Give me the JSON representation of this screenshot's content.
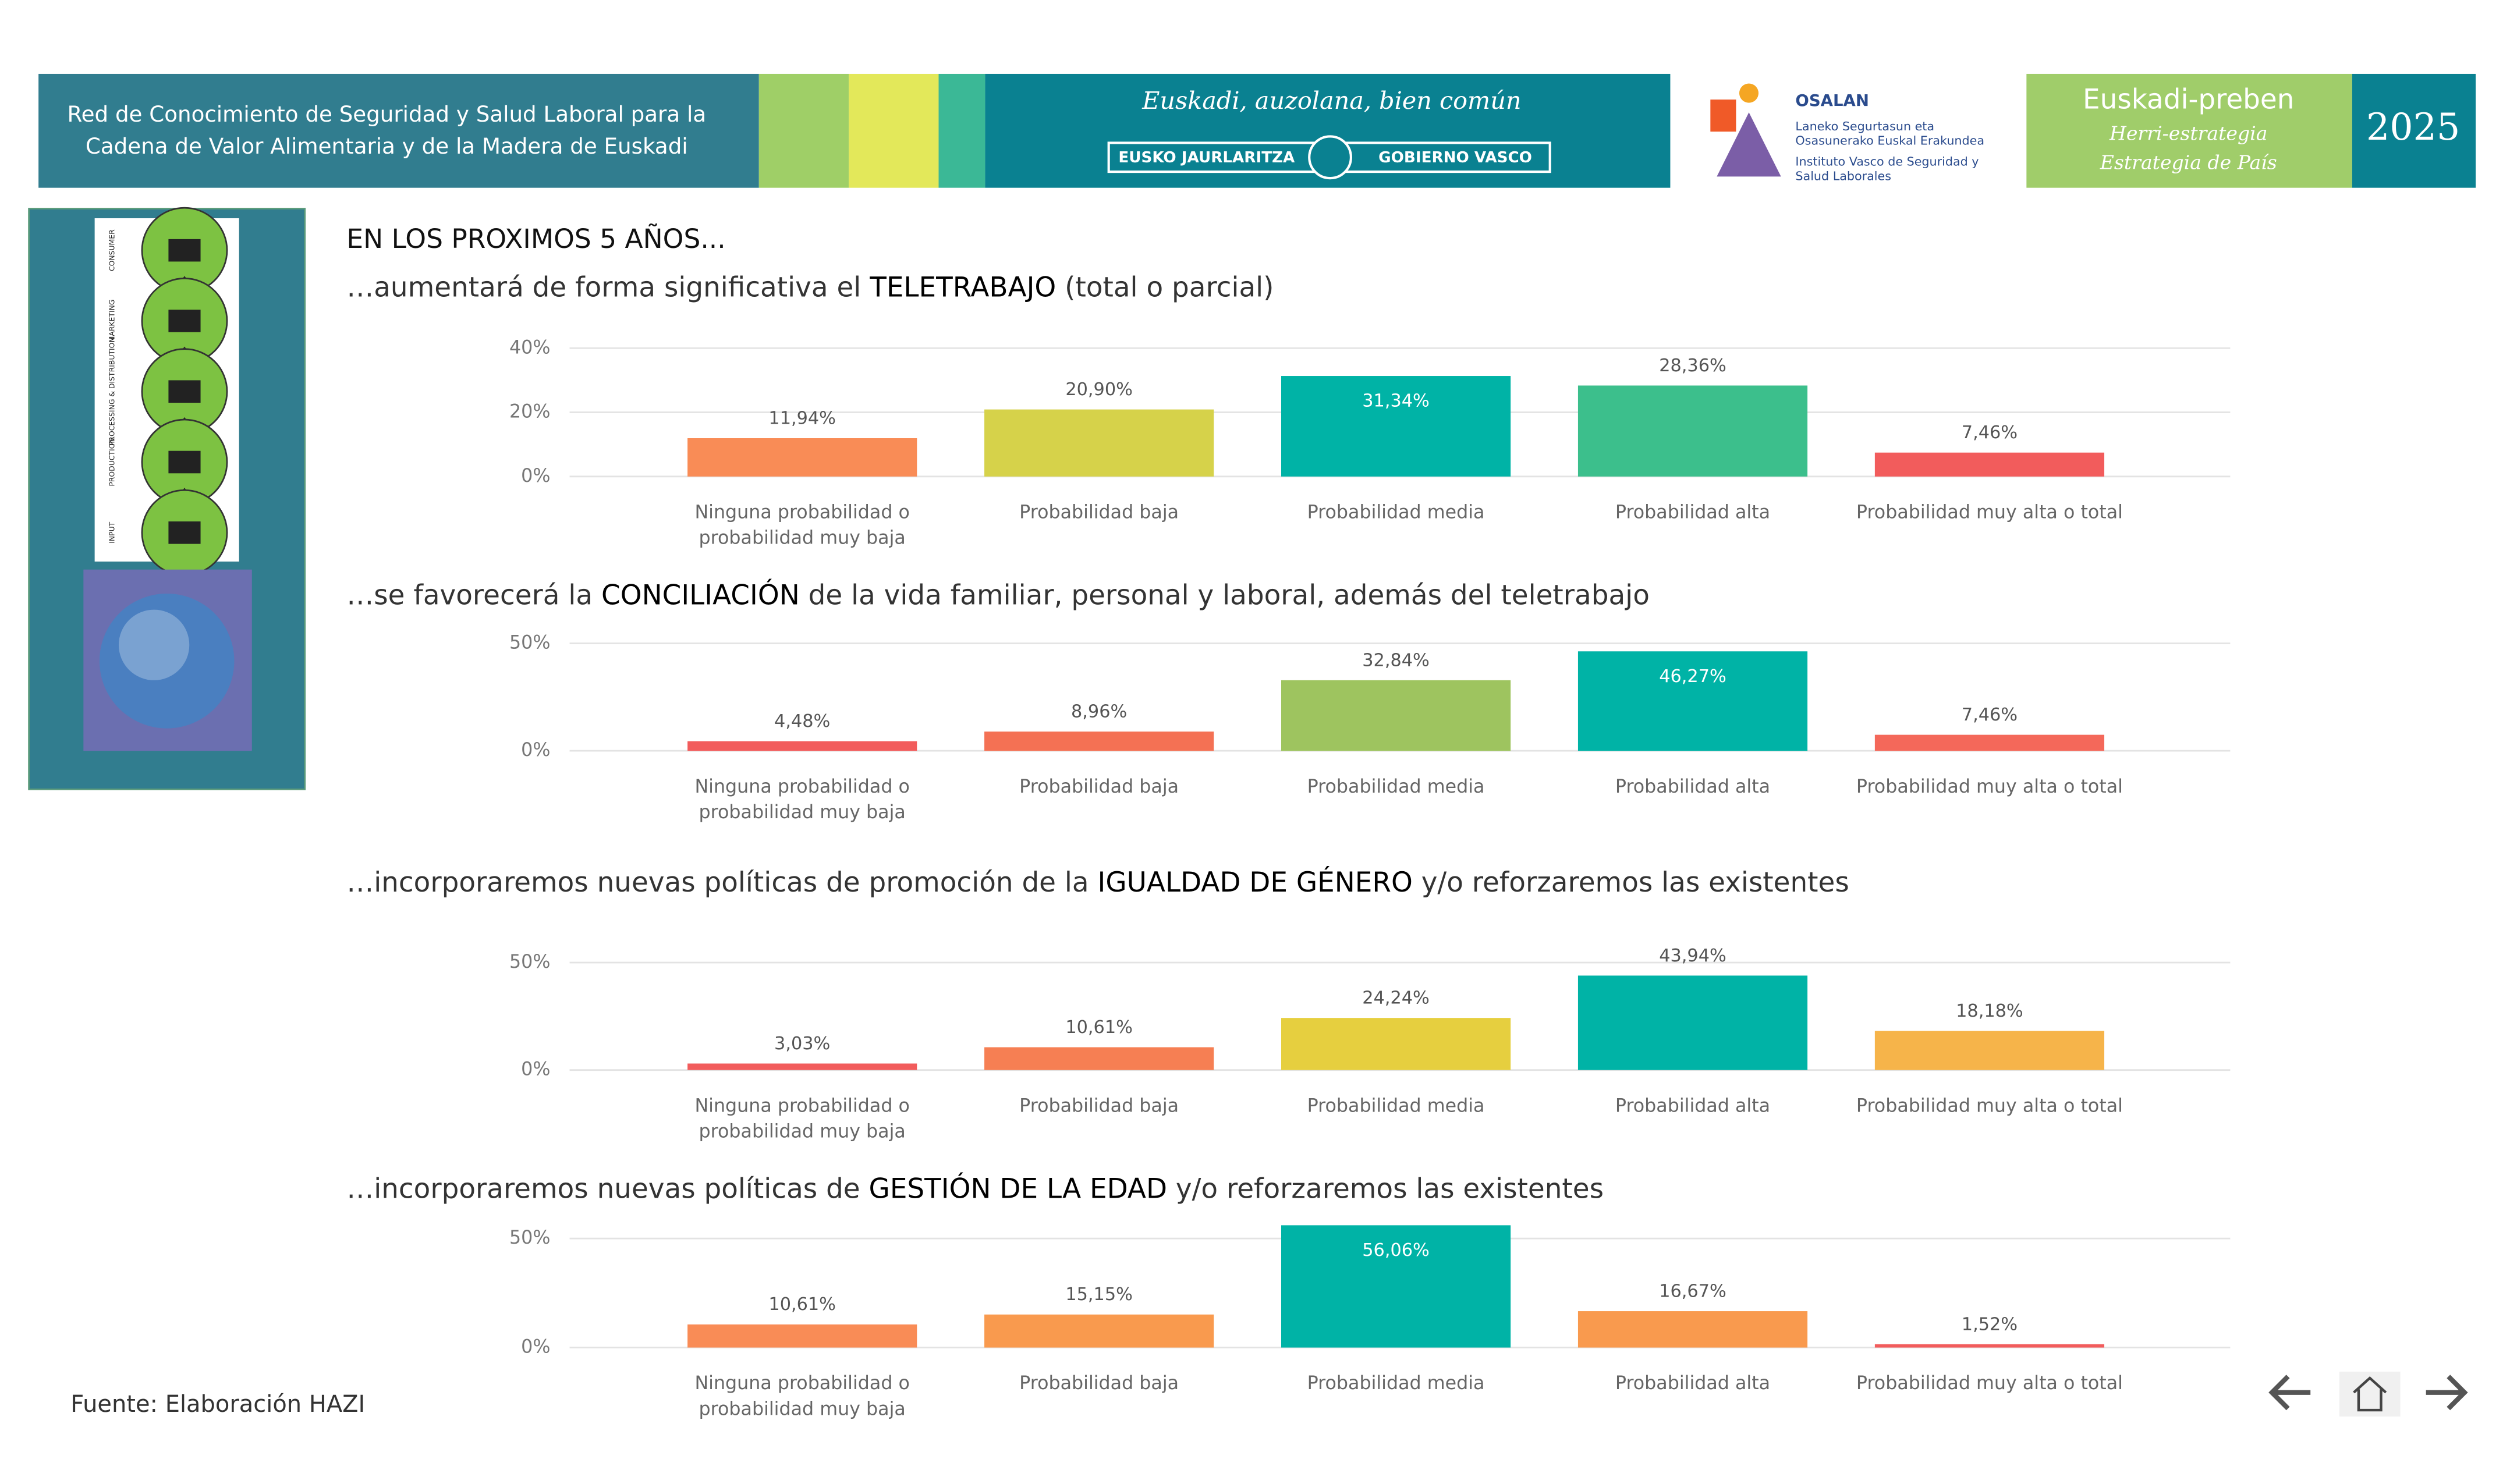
{
  "header": {
    "left_title": [
      "Red de Conocimiento de Seguridad y Salud Laboral para la",
      "Cadena de Valor Alimentaria y de la Madera de Euskadi"
    ],
    "slogan": "Euskadi, auzolana, bien común",
    "gov_left": "EUSKO JAURLARITZA",
    "gov_right": "GOBIERNO VASCO",
    "osalan": "OSALAN",
    "osalan_lines": [
      "Laneko Segurtasun eta",
      "Osasunerako Euskal Erakundea",
      "Instituto Vasco de Seguridad y",
      "Salud Laborales"
    ],
    "preben": "Euskadi-preben",
    "preben_sub": [
      "Herri-estrategia",
      "Estrategia de País"
    ],
    "year": "2025"
  },
  "side_panel": {
    "labels": [
      "CONSUMER",
      "MARKETING",
      "PROCESSING & DISTRIBUTION",
      "PRODUCTION",
      "INPUT"
    ]
  },
  "heading": "EN LOS PROXIMOS 5 AÑOS...",
  "source": "Fuente: Elaboración HAZI",
  "chart_data": [
    {
      "type": "bar",
      "title": [
        "…aumentará de forma significativa el ",
        "TELETRABAJO",
        " (total o parcial)"
      ],
      "categories": [
        "Ninguna probabilidad o probabilidad muy baja",
        "Probabilidad baja",
        "Probabilidad media",
        "Probabilidad alta",
        "Probabilidad muy alta o total"
      ],
      "values": [
        11.94,
        20.9,
        31.34,
        28.36,
        7.46
      ],
      "value_labels": [
        "11,94%",
        "20,90%",
        "31,34%",
        "28,36%",
        "7,46%"
      ],
      "colors": [
        "#f98c56",
        "#d6d24a",
        "#00b3a6",
        "#3cbf8c",
        "#f25c5c"
      ],
      "ylim": [
        0,
        40
      ],
      "yticks": [
        {
          "value": 0,
          "label": "0%"
        },
        {
          "value": 20,
          "label": "20%"
        },
        {
          "value": 40,
          "label": "40%"
        }
      ],
      "grid": true
    },
    {
      "type": "bar",
      "title": [
        "…se favorecerá la ",
        "CONCILIACIÓN",
        " de la vida familiar, personal y laboral, además del teletrabajo"
      ],
      "categories": [
        "Ninguna probabilidad o probabilidad muy baja",
        "Probabilidad baja",
        "Probabilidad media",
        "Probabilidad alta",
        "Probabilidad muy alta o total"
      ],
      "values": [
        4.48,
        8.96,
        32.84,
        46.27,
        7.46
      ],
      "value_labels": [
        "4,48%",
        "8,96%",
        "32,84%",
        "46,27%",
        "7,46%"
      ],
      "colors": [
        "#f25c5c",
        "#f47154",
        "#9ec45f",
        "#00b3a6",
        "#f4685a"
      ],
      "ylim": [
        0,
        50
      ],
      "yticks": [
        {
          "value": 0,
          "label": "0%"
        },
        {
          "value": 50,
          "label": "50%"
        }
      ],
      "grid": true
    },
    {
      "type": "bar",
      "title": [
        "…incorporaremos nuevas políticas de promoción de la ",
        "IGUALDAD DE GÉNERO",
        " y/o reforzaremos las existentes"
      ],
      "categories": [
        "Ninguna probabilidad o probabilidad muy baja",
        "Probabilidad baja",
        "Probabilidad media",
        "Probabilidad alta",
        "Probabilidad muy alta o total"
      ],
      "values": [
        3.03,
        10.61,
        24.24,
        43.94,
        18.18
      ],
      "value_labels": [
        "3,03%",
        "10,61%",
        "24,24%",
        "43,94%",
        "18,18%"
      ],
      "colors": [
        "#f25c5c",
        "#f67f53",
        "#e6cf3f",
        "#00b3a6",
        "#f6b44a"
      ],
      "ylim": [
        0,
        50
      ],
      "yticks": [
        {
          "value": 0,
          "label": "0%"
        },
        {
          "value": 50,
          "label": "50%"
        }
      ],
      "grid": true
    },
    {
      "type": "bar",
      "title": [
        "…incorporaremos nuevas políticas de ",
        "GESTIÓN DE LA EDAD",
        " y/o reforzaremos las existentes"
      ],
      "categories": [
        "Ninguna probabilidad o probabilidad muy baja",
        "Probabilidad baja",
        "Probabilidad media",
        "Probabilidad alta",
        "Probabilidad muy alta o total"
      ],
      "values": [
        10.61,
        15.15,
        56.06,
        16.67,
        1.52
      ],
      "value_labels": [
        "10,61%",
        "15,15%",
        "56,06%",
        "16,67%",
        "1,52%"
      ],
      "colors": [
        "#f98c56",
        "#f99a4e",
        "#00b3a6",
        "#f99a4e",
        "#f25c5c"
      ],
      "ylim": [
        0,
        50
      ],
      "yticks": [
        {
          "value": 0,
          "label": "0%"
        },
        {
          "value": 50,
          "label": "50%"
        }
      ],
      "grid": true
    }
  ]
}
